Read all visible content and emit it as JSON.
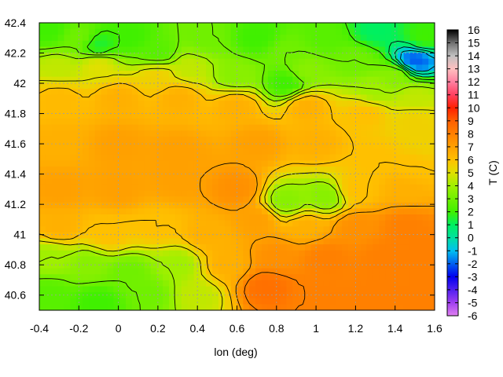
{
  "chart_data": {
    "type": "heatmap",
    "title": "",
    "xlabel": "lon (deg)",
    "ylabel": "",
    "colorbar_label": "T (C)",
    "xlim": [
      -0.4,
      1.6
    ],
    "ylim": [
      40.5,
      42.4
    ],
    "x_ticks": [
      -0.4,
      -0.2,
      0,
      0.2,
      0.4,
      0.6,
      0.8,
      1,
      1.2,
      1.4,
      1.6
    ],
    "x_tick_labels": [
      "-0.4",
      "-0.2",
      "0",
      "0.2",
      "0.4",
      "0.6",
      "0.8",
      "1",
      "1.2",
      "1.4",
      "1.6"
    ],
    "y_ticks": [
      40.6,
      40.8,
      41,
      41.2,
      41.4,
      41.6,
      41.8,
      42,
      42.2,
      42.4
    ],
    "y_tick_labels": [
      "40.6",
      "40.8",
      "41",
      "41.2",
      "41.4",
      "41.6",
      "41.8",
      "42",
      "42.2",
      "42.4"
    ],
    "colorbar_range": [
      -6,
      16
    ],
    "colorbar_ticks": [
      -6,
      -5,
      -4,
      -3,
      -2,
      -1,
      0,
      1,
      2,
      3,
      4,
      5,
      6,
      7,
      8,
      9,
      10,
      11,
      12,
      13,
      14,
      15,
      16
    ],
    "colorbar_tick_labels": [
      "-6",
      "-5",
      "-4",
      "-3",
      "-2",
      "-1",
      "0",
      "1",
      "2",
      "3",
      "4",
      "5",
      "6",
      "7",
      "8",
      "9",
      "10",
      "11",
      "12",
      "13",
      "14",
      "15",
      "16"
    ],
    "colormap_stops": [
      {
        "value": -6,
        "color": "#e080f0"
      },
      {
        "value": -5,
        "color": "#a040f0"
      },
      {
        "value": -3,
        "color": "#0000f0"
      },
      {
        "value": -1,
        "color": "#00c0f0"
      },
      {
        "value": 0,
        "color": "#00e0a0"
      },
      {
        "value": 1,
        "color": "#00f060"
      },
      {
        "value": 2,
        "color": "#40f000"
      },
      {
        "value": 4,
        "color": "#a0f000"
      },
      {
        "value": 5,
        "color": "#e0e000"
      },
      {
        "value": 6,
        "color": "#ffc000"
      },
      {
        "value": 8,
        "color": "#ff8000"
      },
      {
        "value": 9,
        "color": "#ff6000"
      },
      {
        "value": 10,
        "color": "#ff2000"
      },
      {
        "value": 11,
        "color": "#ff4060"
      },
      {
        "value": 12,
        "color": "#ff80a0"
      },
      {
        "value": 13,
        "color": "#ffc0c0"
      },
      {
        "value": 14,
        "color": "#c0c0c0"
      },
      {
        "value": 15,
        "color": "#707070"
      },
      {
        "value": 16,
        "color": "#000000"
      }
    ],
    "grid": true,
    "contours": true,
    "field_points": [
      {
        "lon": -0.35,
        "lat": 42.35,
        "t": 2
      },
      {
        "lon": -0.2,
        "lat": 42.3,
        "t": 3
      },
      {
        "lon": -0.1,
        "lat": 42.25,
        "t": 1.5
      },
      {
        "lon": 0.05,
        "lat": 42.3,
        "t": 2
      },
      {
        "lon": 0.2,
        "lat": 42.2,
        "t": 2.5
      },
      {
        "lon": 0.45,
        "lat": 42.3,
        "t": 3
      },
      {
        "lon": 0.7,
        "lat": 42.3,
        "t": 2
      },
      {
        "lon": 0.85,
        "lat": 42.2,
        "t": 3
      },
      {
        "lon": 1.05,
        "lat": 42.3,
        "t": 2.5
      },
      {
        "lon": 1.2,
        "lat": 42.15,
        "t": 3
      },
      {
        "lon": 1.3,
        "lat": 42.35,
        "t": 1
      },
      {
        "lon": 1.55,
        "lat": 42.3,
        "t": 2
      },
      {
        "lon": 1.5,
        "lat": 42.15,
        "t": -2
      },
      {
        "lon": 1.4,
        "lat": 42.05,
        "t": 3.5
      },
      {
        "lon": 1.3,
        "lat": 41.95,
        "t": 4
      },
      {
        "lon": 1.5,
        "lat": 41.9,
        "t": 4.5
      },
      {
        "lon": 0.85,
        "lat": 42.0,
        "t": 2
      },
      {
        "lon": 0.95,
        "lat": 42.08,
        "t": 3.5
      },
      {
        "lon": 0.6,
        "lat": 42.05,
        "t": 3.5
      },
      {
        "lon": -0.3,
        "lat": 42.1,
        "t": 4.5
      },
      {
        "lon": -0.1,
        "lat": 42.12,
        "t": 5
      },
      {
        "lon": 0.2,
        "lat": 42.05,
        "t": 5.5
      },
      {
        "lon": 0.35,
        "lat": 42.1,
        "t": 4.5
      },
      {
        "lon": -0.3,
        "lat": 41.9,
        "t": 6.2
      },
      {
        "lon": 0.0,
        "lat": 41.9,
        "t": 6.5
      },
      {
        "lon": 0.3,
        "lat": 41.9,
        "t": 6.5
      },
      {
        "lon": 0.6,
        "lat": 41.85,
        "t": 6.5
      },
      {
        "lon": 0.95,
        "lat": 41.85,
        "t": 6.5
      },
      {
        "lon": 1.25,
        "lat": 41.8,
        "t": 6
      },
      {
        "lon": 1.5,
        "lat": 41.75,
        "t": 5.5
      },
      {
        "lon": 1.55,
        "lat": 41.6,
        "t": 5.5
      },
      {
        "lon": -0.3,
        "lat": 41.6,
        "t": 6.5
      },
      {
        "lon": 0.0,
        "lat": 41.6,
        "t": 7
      },
      {
        "lon": 0.3,
        "lat": 41.55,
        "t": 7
      },
      {
        "lon": 0.7,
        "lat": 41.6,
        "t": 7
      },
      {
        "lon": 1.0,
        "lat": 41.6,
        "t": 6.5
      },
      {
        "lon": 1.3,
        "lat": 41.5,
        "t": 6
      },
      {
        "lon": 1.5,
        "lat": 41.45,
        "t": 6
      },
      {
        "lon": -0.3,
        "lat": 41.3,
        "t": 7
      },
      {
        "lon": 0.0,
        "lat": 41.3,
        "t": 7
      },
      {
        "lon": 0.3,
        "lat": 41.35,
        "t": 7
      },
      {
        "lon": 0.6,
        "lat": 41.3,
        "t": 7.5
      },
      {
        "lon": 0.85,
        "lat": 41.22,
        "t": 3.5
      },
      {
        "lon": 1.05,
        "lat": 41.25,
        "t": 3.5
      },
      {
        "lon": 1.2,
        "lat": 41.3,
        "t": 6
      },
      {
        "lon": 1.45,
        "lat": 41.3,
        "t": 6.5
      },
      {
        "lon": -0.3,
        "lat": 41.05,
        "t": 6.5
      },
      {
        "lon": -0.05,
        "lat": 41.0,
        "t": 6
      },
      {
        "lon": 0.2,
        "lat": 41.05,
        "t": 6
      },
      {
        "lon": 0.45,
        "lat": 41.0,
        "t": 6.5
      },
      {
        "lon": 0.7,
        "lat": 41.1,
        "t": 7
      },
      {
        "lon": 0.95,
        "lat": 41.05,
        "t": 6.5
      },
      {
        "lon": 1.2,
        "lat": 41.05,
        "t": 7.5
      },
      {
        "lon": 1.45,
        "lat": 41.05,
        "t": 8
      },
      {
        "lon": -0.35,
        "lat": 40.85,
        "t": 4
      },
      {
        "lon": -0.15,
        "lat": 40.8,
        "t": 3.5
      },
      {
        "lon": 0.05,
        "lat": 40.75,
        "t": 3
      },
      {
        "lon": 0.3,
        "lat": 40.8,
        "t": 4
      },
      {
        "lon": 0.55,
        "lat": 40.8,
        "t": 6.5
      },
      {
        "lon": 0.8,
        "lat": 40.85,
        "t": 7.5
      },
      {
        "lon": 1.05,
        "lat": 40.85,
        "t": 8
      },
      {
        "lon": 1.35,
        "lat": 40.85,
        "t": 8
      },
      {
        "lon": 1.55,
        "lat": 40.9,
        "t": 8
      },
      {
        "lon": -0.35,
        "lat": 40.6,
        "t": 2.5
      },
      {
        "lon": -0.1,
        "lat": 40.55,
        "t": 2
      },
      {
        "lon": 0.15,
        "lat": 40.6,
        "t": 3
      },
      {
        "lon": 0.4,
        "lat": 40.6,
        "t": 4.5
      },
      {
        "lon": 0.75,
        "lat": 40.65,
        "t": 8.5
      },
      {
        "lon": 1.0,
        "lat": 40.6,
        "t": 8
      },
      {
        "lon": 1.3,
        "lat": 40.6,
        "t": 8
      },
      {
        "lon": 1.55,
        "lat": 40.6,
        "t": 8
      }
    ]
  }
}
